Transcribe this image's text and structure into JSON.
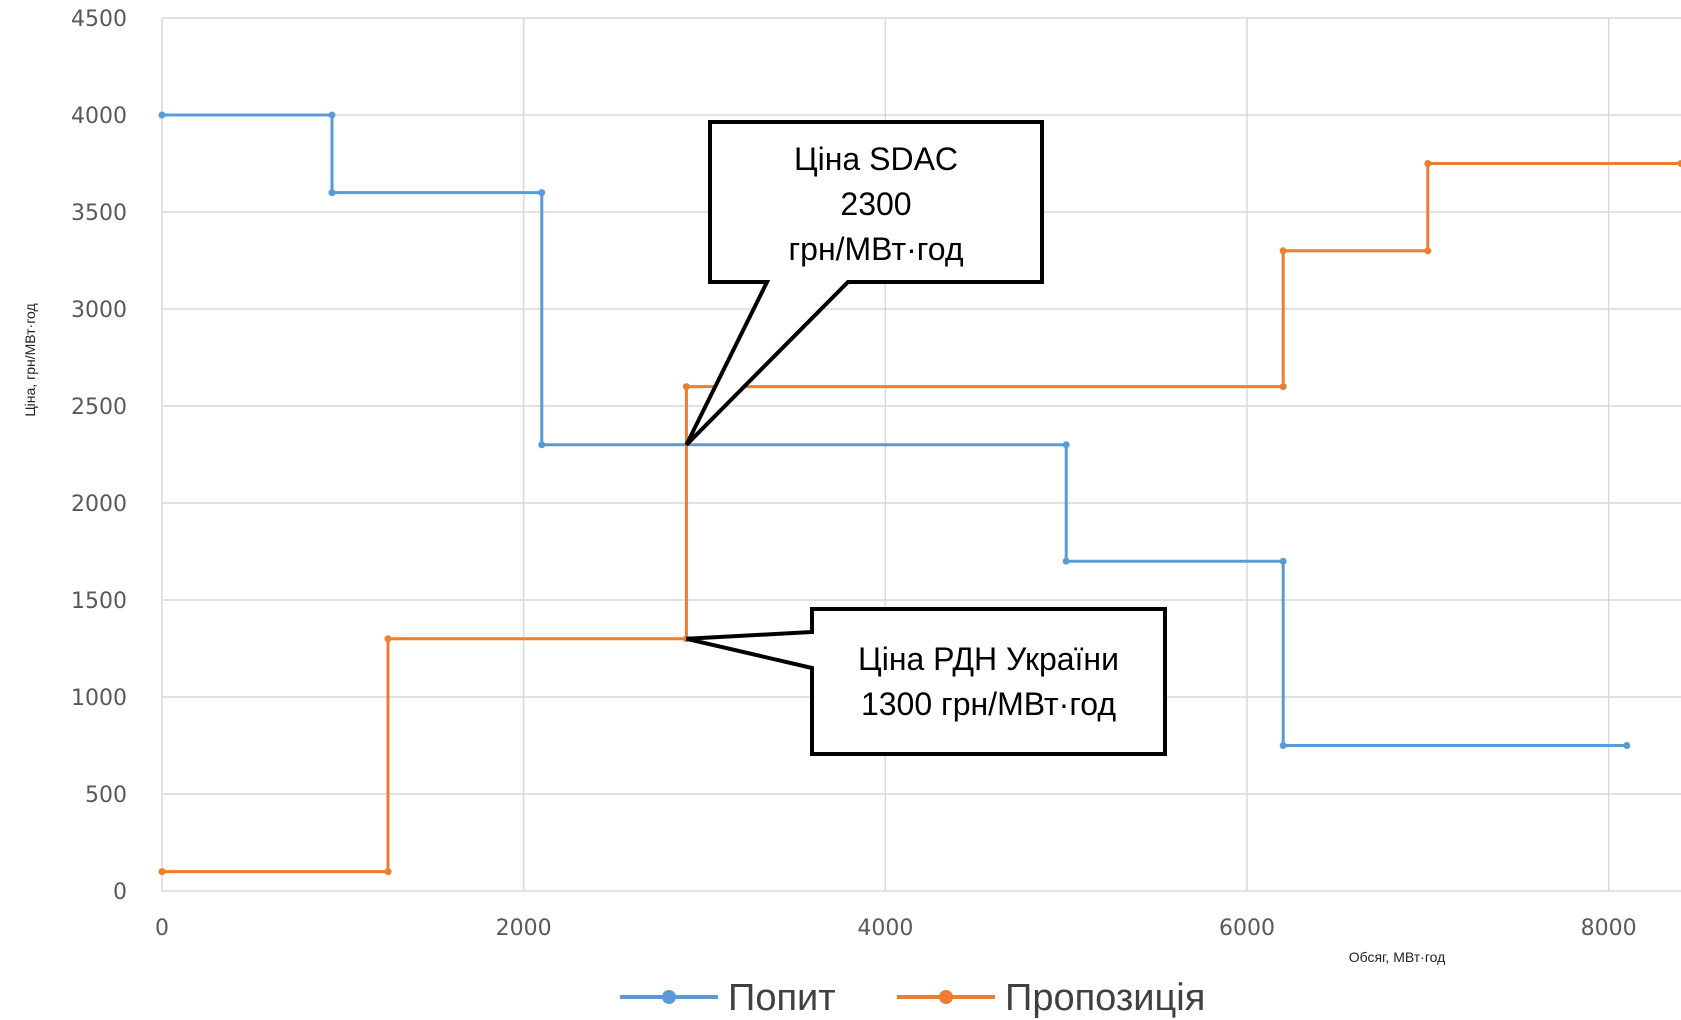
{
  "chart_data": {
    "type": "line",
    "step": true,
    "xlabel": "Обсяг, МВт·год",
    "ylabel": "Ціна, грн/МВт·год",
    "xlim": [
      0,
      8400
    ],
    "ylim": [
      0,
      4500
    ],
    "x_ticks": [
      0,
      2000,
      4000,
      6000,
      8000
    ],
    "y_ticks": [
      0,
      500,
      1000,
      1500,
      2000,
      2500,
      3000,
      3500,
      4000,
      4500
    ],
    "grid": true,
    "legend_position": "bottom",
    "series": [
      {
        "name": "Попит",
        "color": "#5b9bd5",
        "points": [
          [
            0,
            4000
          ],
          [
            940,
            4000
          ],
          [
            940,
            3600
          ],
          [
            2100,
            3600
          ],
          [
            2100,
            2300
          ],
          [
            5000,
            2300
          ],
          [
            5000,
            1700
          ],
          [
            6200,
            1700
          ],
          [
            6200,
            750
          ],
          [
            8100,
            750
          ]
        ]
      },
      {
        "name": "Пропозиція",
        "color": "#ed7d31",
        "points": [
          [
            0,
            100
          ],
          [
            1250,
            100
          ],
          [
            1250,
            1300
          ],
          [
            2900,
            1300
          ],
          [
            2900,
            2600
          ],
          [
            6200,
            2600
          ],
          [
            6200,
            3300
          ],
          [
            7000,
            3300
          ],
          [
            7000,
            3750
          ],
          [
            8400,
            3750
          ]
        ]
      }
    ],
    "annotations": [
      {
        "lines": [
          "Ціна SDAC",
          "2300",
          "грн/МВт·год"
        ],
        "x": 2900,
        "y": 2300
      },
      {
        "lines": [
          "Ціна РДН України",
          "1300 грн/МВт·год"
        ],
        "x": 2900,
        "y": 1300
      }
    ]
  }
}
